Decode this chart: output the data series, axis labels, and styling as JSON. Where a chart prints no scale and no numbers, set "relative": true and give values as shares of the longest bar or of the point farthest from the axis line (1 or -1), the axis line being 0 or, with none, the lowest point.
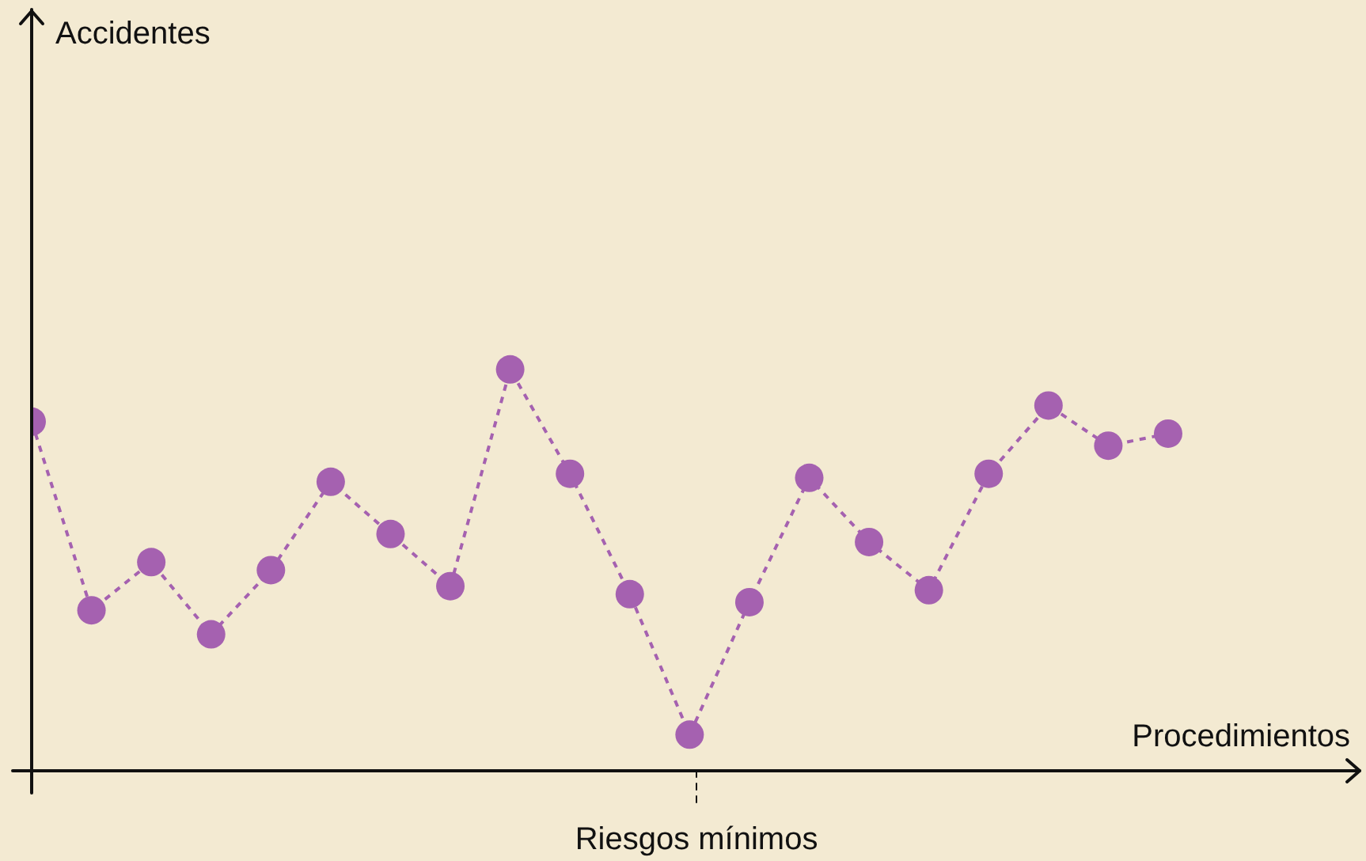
{
  "chart_data": {
    "type": "line",
    "relative": true,
    "xlabel": "Procedimientos",
    "marker": "circle",
    "line_style": "dashed",
    "categories": [
      null,
      null,
      null,
      null,
      null,
      null,
      null,
      null,
      null,
      null,
      null,
      null,
      null,
      null,
      null,
      null,
      null,
      null,
      null,
      null
    ],
    "series": [
      {
        "color": "#a561b0",
        "values": [
          0.87,
          0.4,
          0.52,
          0.34,
          0.5,
          0.72,
          0.59,
          0.46,
          1,
          0.74,
          0.44,
          0.09,
          0.42,
          0.73,
          0.57,
          0.45,
          0.74,
          0.91,
          0.81,
          0.84
        ]
      }
    ],
    "annotations": [
      "Accidentes",
      "Riesgos mínimos"
    ]
  }
}
